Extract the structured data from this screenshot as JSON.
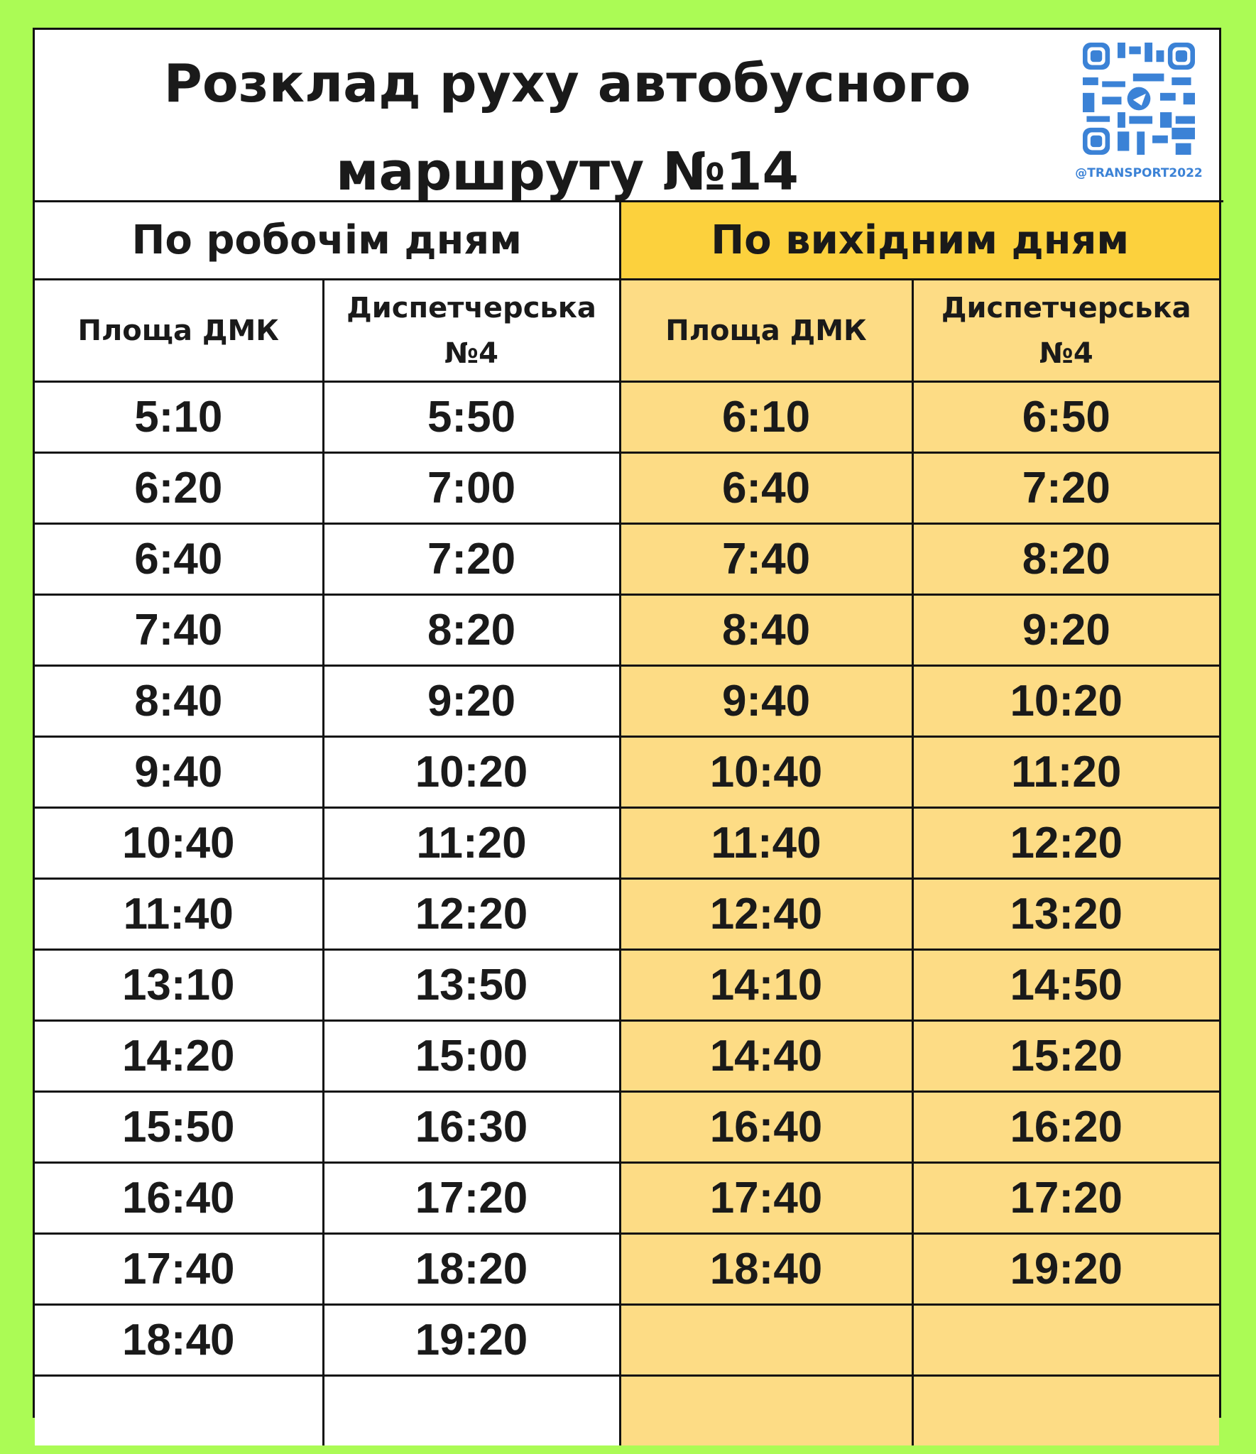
{
  "title": {
    "line1": "Розклад руху автобусного",
    "line2": "маршруту №14"
  },
  "qr": {
    "handle": "@TRANSPORT2022",
    "icon": "telegram-qr-code",
    "color": "#3b82d6"
  },
  "colors": {
    "background": "#abfb55",
    "weekend_header": "#fcd13d",
    "weekend_cells": "#fddc85"
  },
  "weekdays": {
    "label": "По робочім дням",
    "col1": "Площа ДМК",
    "col2": "Диспетчерська №4",
    "rows": [
      [
        "5:10",
        "5:50"
      ],
      [
        "6:20",
        "7:00"
      ],
      [
        "6:40",
        "7:20"
      ],
      [
        "7:40",
        "8:20"
      ],
      [
        "8:40",
        "9:20"
      ],
      [
        "9:40",
        "10:20"
      ],
      [
        "10:40",
        "11:20"
      ],
      [
        "11:40",
        "12:20"
      ],
      [
        "13:10",
        "13:50"
      ],
      [
        "14:20",
        "15:00"
      ],
      [
        "15:50",
        "16:30"
      ],
      [
        "16:40",
        "17:20"
      ],
      [
        "17:40",
        "18:20"
      ],
      [
        "18:40",
        "19:20"
      ],
      [
        "",
        ""
      ]
    ]
  },
  "weekends": {
    "label": "По вихідним дням",
    "col1": "Площа ДМК",
    "col2": "Диспетчерська №4",
    "rows": [
      [
        "6:10",
        "6:50"
      ],
      [
        "6:40",
        "7:20"
      ],
      [
        "7:40",
        "8:20"
      ],
      [
        "8:40",
        "9:20"
      ],
      [
        "9:40",
        "10:20"
      ],
      [
        "10:40",
        "11:20"
      ],
      [
        "11:40",
        "12:20"
      ],
      [
        "12:40",
        "13:20"
      ],
      [
        "14:10",
        "14:50"
      ],
      [
        "14:40",
        "15:20"
      ],
      [
        "16:40",
        "16:20"
      ],
      [
        "17:40",
        "17:20"
      ],
      [
        "18:40",
        "19:20"
      ],
      [
        "",
        ""
      ],
      [
        "",
        ""
      ]
    ]
  }
}
